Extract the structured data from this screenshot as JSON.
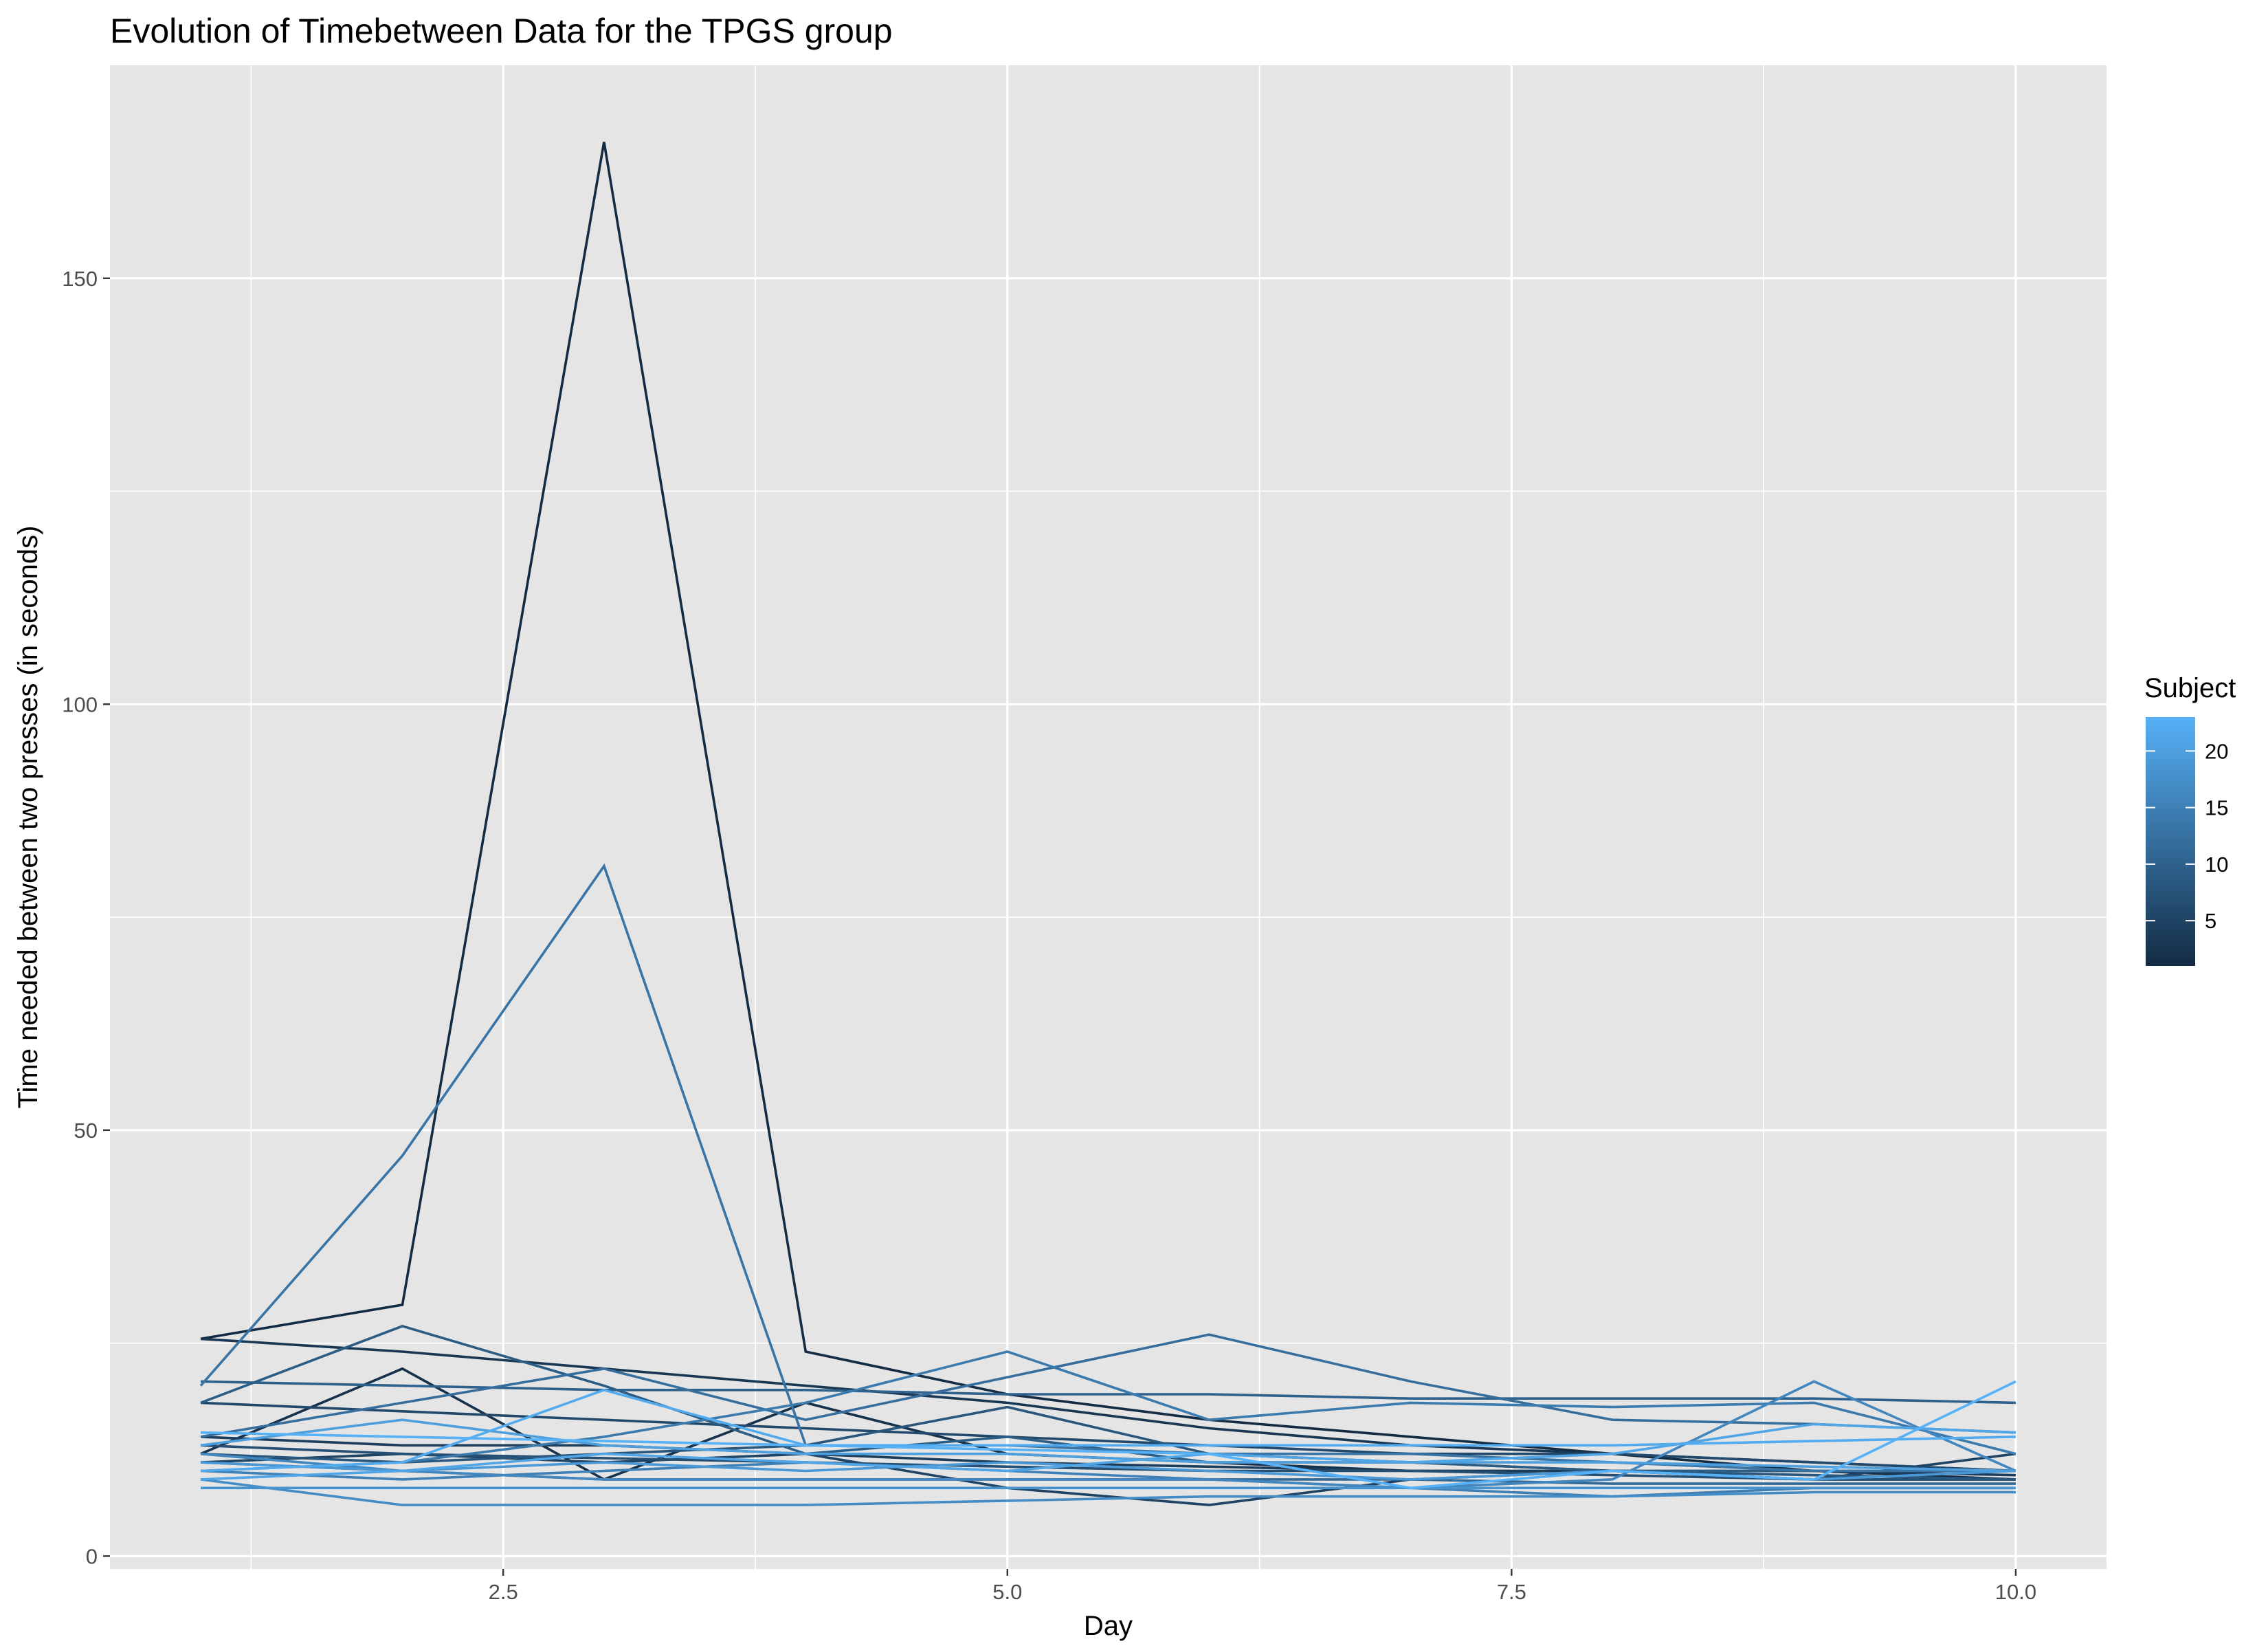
{
  "chart_data": {
    "type": "line",
    "title": "Evolution of Timebetween Data for the TPGS group",
    "xlabel": "Day",
    "ylabel": "Time needed between two presses (in seconds)",
    "xlim": [
      0.55,
      10.45
    ],
    "ylim": [
      -1.5,
      175
    ],
    "x_ticks": [
      2.5,
      5.0,
      7.5,
      10.0
    ],
    "x_tick_labels": [
      "2.5",
      "5.0",
      "7.5",
      "10.0"
    ],
    "y_ticks": [
      0,
      50,
      100,
      150
    ],
    "y_tick_labels": [
      "0",
      "50",
      "100",
      "150"
    ],
    "grid": true,
    "legend": {
      "title": "Subject",
      "placement": "right",
      "type": "colorbar",
      "range": [
        1,
        23
      ],
      "breaks": [
        5,
        10,
        15,
        20
      ],
      "break_labels": [
        "5",
        "10",
        "15",
        "20"
      ],
      "low_color": "#132B43",
      "high_color": "#56B1F7"
    },
    "colors": {
      "panel_background": "#e5e5e5",
      "grid": "#ffffff",
      "low": "#132B43",
      "high": "#56B1F7"
    },
    "series": [
      {
        "subject": 1,
        "x": [
          1,
          2,
          3,
          4,
          5,
          6,
          7,
          8,
          9,
          10
        ],
        "y": [
          25.5,
          29.5,
          166,
          24,
          19,
          16,
          14,
          12,
          10,
          9
        ]
      },
      {
        "subject": 2,
        "x": [
          1,
          2,
          3,
          4,
          5,
          6,
          7,
          8,
          9,
          10
        ],
        "y": [
          12,
          22,
          9,
          18,
          12,
          11,
          10,
          10,
          9,
          9
        ]
      },
      {
        "subject": 3,
        "x": [
          1,
          2,
          3,
          4,
          5,
          6,
          7,
          8,
          9,
          10
        ],
        "y": [
          25.5,
          24,
          22,
          20,
          18,
          15,
          13,
          12,
          11,
          10
        ]
      },
      {
        "subject": 4,
        "x": [
          1,
          2,
          3,
          4,
          5,
          6,
          7,
          8,
          9,
          10
        ],
        "y": [
          14,
          13,
          13,
          12,
          11,
          10.5,
          10,
          10,
          10,
          9.5
        ]
      },
      {
        "subject": 5,
        "x": [
          1,
          2,
          3,
          4,
          5,
          6,
          7,
          8,
          9,
          10
        ],
        "y": [
          11,
          12,
          11,
          12,
          8,
          6,
          9,
          10,
          9,
          12
        ]
      },
      {
        "subject": 6,
        "x": [
          1,
          2,
          3,
          4,
          5,
          6,
          7,
          8,
          9,
          10
        ],
        "y": [
          18,
          17,
          16,
          15,
          14,
          13,
          12,
          12,
          11,
          10
        ]
      },
      {
        "subject": 7,
        "x": [
          1,
          2,
          3,
          4,
          5,
          6,
          7,
          8,
          9,
          10
        ],
        "y": [
          13,
          12,
          11.5,
          11,
          10.5,
          10,
          10,
          9.5,
          9,
          9
        ]
      },
      {
        "subject": 8,
        "x": [
          1,
          2,
          3,
          4,
          5,
          6,
          7,
          8,
          9,
          10
        ],
        "y": [
          12,
          11,
          12,
          13,
          17.5,
          12,
          11,
          10,
          9.5,
          9
        ]
      },
      {
        "subject": 9,
        "x": [
          1,
          2,
          3,
          4,
          5,
          6,
          7,
          8,
          9,
          10
        ],
        "y": [
          18,
          27,
          20,
          12,
          14,
          11,
          11,
          10,
          10,
          10
        ]
      },
      {
        "subject": 10,
        "x": [
          1,
          2,
          3,
          4,
          5,
          6,
          7,
          8,
          9,
          10
        ],
        "y": [
          20.5,
          20,
          19.5,
          19.5,
          19,
          19,
          18.5,
          18.5,
          18.5,
          18
        ]
      },
      {
        "subject": 11,
        "x": [
          1,
          2,
          3,
          4,
          5,
          6,
          7,
          8,
          9,
          10
        ],
        "y": [
          11,
          10,
          9,
          9,
          9,
          9,
          9,
          8.5,
          8.5,
          8.5
        ]
      },
      {
        "subject": 12,
        "x": [
          1,
          2,
          3,
          4,
          5,
          6,
          7,
          8,
          9,
          10
        ],
        "y": [
          14,
          18,
          22,
          16,
          21,
          26,
          20.5,
          16,
          15.5,
          14.5
        ]
      },
      {
        "subject": 13,
        "x": [
          1,
          2,
          3,
          4,
          5,
          6,
          7,
          8,
          9,
          10
        ],
        "y": [
          20,
          47,
          81,
          13,
          13,
          12,
          12,
          11,
          10,
          10
        ]
      },
      {
        "subject": 14,
        "x": [
          1,
          2,
          3,
          4,
          5,
          6,
          7,
          8,
          9,
          10
        ],
        "y": [
          10,
          11,
          14,
          18,
          24,
          16,
          18,
          17.5,
          18,
          12
        ]
      },
      {
        "subject": 15,
        "x": [
          1,
          2,
          3,
          4,
          5,
          6,
          7,
          8,
          9,
          10
        ],
        "y": [
          10,
          9,
          10,
          11,
          10,
          9,
          8,
          7,
          8,
          8
        ]
      },
      {
        "subject": 16,
        "x": [
          1,
          2,
          3,
          4,
          5,
          6,
          7,
          8,
          9,
          10
        ],
        "y": [
          12,
          10,
          9,
          9,
          9,
          9,
          8,
          9,
          20.5,
          10
        ]
      },
      {
        "subject": 17,
        "x": [
          1,
          2,
          3,
          4,
          5,
          6,
          7,
          8,
          9,
          10
        ],
        "y": [
          9,
          6,
          6,
          6,
          6.5,
          7,
          7,
          7,
          7.5,
          7.5
        ]
      },
      {
        "subject": 18,
        "x": [
          1,
          2,
          3,
          4,
          5,
          6,
          7,
          8,
          9,
          10
        ],
        "y": [
          8,
          8,
          8,
          8,
          8,
          8,
          8,
          8,
          8,
          8
        ]
      },
      {
        "subject": 19,
        "x": [
          1,
          2,
          3,
          4,
          5,
          6,
          7,
          8,
          9,
          10
        ],
        "y": [
          11,
          10,
          11,
          10,
          11,
          10,
          9,
          10,
          9,
          10
        ]
      },
      {
        "subject": 20,
        "x": [
          1,
          2,
          3,
          4,
          5,
          6,
          7,
          8,
          9,
          10
        ],
        "y": [
          13,
          16,
          13,
          12,
          12,
          11,
          11,
          11,
          10.5,
          10
        ]
      },
      {
        "subject": 21,
        "x": [
          1,
          2,
          3,
          4,
          5,
          6,
          7,
          8,
          9,
          10
        ],
        "y": [
          9,
          10,
          12,
          11,
          10,
          12,
          11,
          12,
          15.5,
          14.5
        ]
      },
      {
        "subject": 22,
        "x": [
          1,
          2,
          3,
          4,
          5,
          6,
          7,
          8,
          9,
          10
        ],
        "y": [
          10,
          11,
          19.5,
          13,
          13,
          13,
          13,
          13,
          13.5,
          14
        ]
      },
      {
        "subject": 23,
        "x": [
          1,
          2,
          3,
          4,
          5,
          6,
          7,
          8,
          9,
          10
        ],
        "y": [
          14.5,
          14,
          13.5,
          13,
          12.5,
          12,
          8,
          10,
          9,
          20.5
        ]
      }
    ]
  }
}
